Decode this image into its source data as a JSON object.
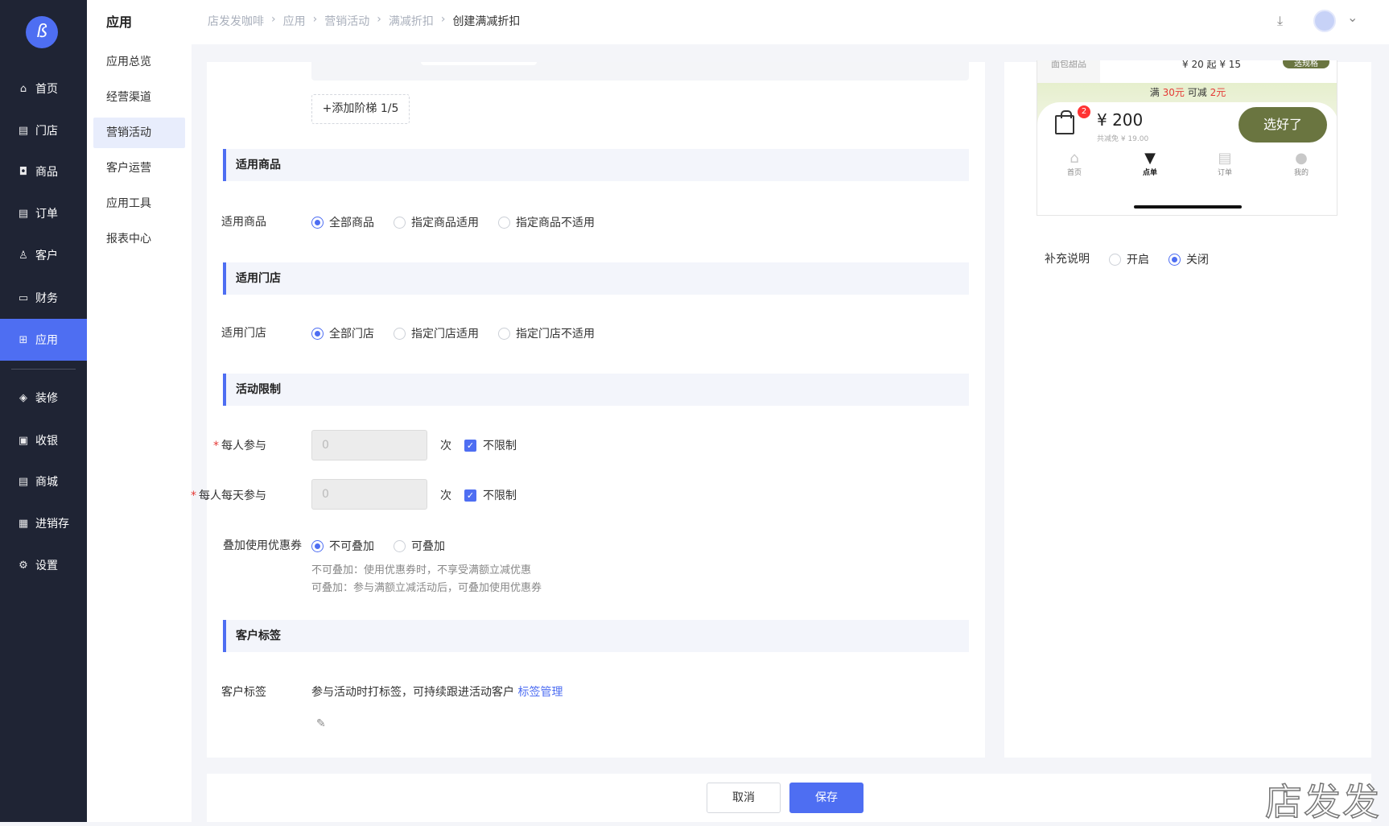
{
  "sidebar": {
    "logo": "ß",
    "items": [
      {
        "label": "首页",
        "icon": "home-icon",
        "glyph": "⌂"
      },
      {
        "label": "门店",
        "icon": "store-icon",
        "glyph": "▤"
      },
      {
        "label": "商品",
        "icon": "bag-icon",
        "glyph": "◘"
      },
      {
        "label": "订单",
        "icon": "order-icon",
        "glyph": "▤"
      },
      {
        "label": "客户",
        "icon": "user-icon",
        "glyph": "♙"
      },
      {
        "label": "财务",
        "icon": "wallet-icon",
        "glyph": "▭"
      },
      {
        "label": "应用",
        "icon": "apps-icon",
        "glyph": "⊞"
      },
      {
        "label": "装修",
        "icon": "layers-icon",
        "glyph": "◈"
      },
      {
        "label": "收银",
        "icon": "cashier-icon",
        "glyph": "▣"
      },
      {
        "label": "商城",
        "icon": "mall-icon",
        "glyph": "▤"
      },
      {
        "label": "进销存",
        "icon": "inventory-icon",
        "glyph": "▦"
      },
      {
        "label": "设置",
        "icon": "gear-icon",
        "glyph": "⚙"
      }
    ]
  },
  "subnav": {
    "title": "应用",
    "items": [
      "应用总览",
      "经营渠道",
      "营销活动",
      "客户运营",
      "应用工具",
      "报表中心"
    ]
  },
  "breadcrumb": [
    "店发发咖啡",
    "应用",
    "营销活动",
    "满减折扣",
    "创建满减折扣"
  ],
  "breadcrumb_sep": "›",
  "header": {
    "download_glyph": "⤓",
    "chevron_glyph": "⌄"
  },
  "form": {
    "add_ladder": "+添加阶梯 1/5",
    "sec_goods": "适用商品",
    "goods_label": "适用商品",
    "goods_opts": [
      "全部商品",
      "指定商品适用",
      "指定商品不适用"
    ],
    "sec_store": "适用门店",
    "store_label": "适用门店",
    "store_opts": [
      "全部门店",
      "指定门店适用",
      "指定门店不适用"
    ],
    "sec_limit": "活动限制",
    "per_person_label": "每人参与",
    "per_person_value": "0",
    "per_day_label": "每人每天参与",
    "per_day_value": "0",
    "unit": "次",
    "unlimited": "不限制",
    "required": "*",
    "stack_label": "叠加使用优惠券",
    "stack_opts": [
      "不可叠加",
      "可叠加"
    ],
    "stack_hint1": "不可叠加：使用优惠券时，不享受满额立减优惠",
    "stack_hint2": "可叠加：参与满额立减活动后，可叠加使用优惠券",
    "sec_tag": "客户标签",
    "tag_label": "客户标签",
    "tag_desc": "参与活动时打标签，可持续跟进活动客户",
    "tag_link": "标签管理"
  },
  "preview": {
    "category": "面包甜品",
    "item_price": "¥ 20 起 ¥ 15",
    "spec_btn": "选规格",
    "promo_prefix": "满",
    "promo_amount": "30元",
    "promo_mid": "可减",
    "promo_off": "2元",
    "cart_count": "2",
    "total": "¥ 200",
    "saved": "共减免 ¥ 19.00",
    "confirm": "选好了",
    "tabs": [
      "首页",
      "点单",
      "订单",
      "我的"
    ],
    "supplement_label": "补充说明",
    "supplement_opts": [
      "开启",
      "关闭"
    ]
  },
  "footer": {
    "cancel": "取消",
    "save": "保存"
  },
  "watermark": "店发发",
  "colors": {
    "accent": "#4e6ef2",
    "sidebar": "#1f2434",
    "confirm_btn": "#6a7540",
    "promo_red": "#e53935"
  }
}
